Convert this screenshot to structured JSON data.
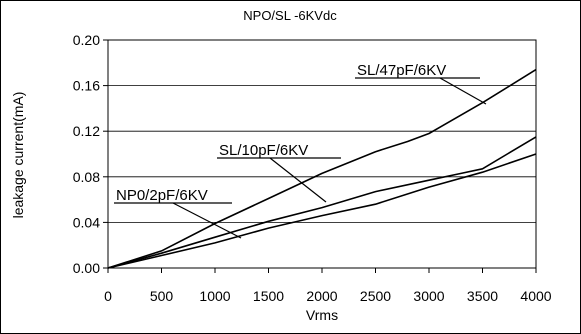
{
  "chart_data": {
    "type": "line",
    "title": "NPO/SL -6KVdc",
    "xlabel": "Vrms",
    "ylabel": "leakage current(mA)",
    "xlim": [
      0,
      4000
    ],
    "ylim": [
      0,
      0.2
    ],
    "xticks": [
      0,
      500,
      1000,
      1500,
      2000,
      2500,
      3000,
      3500,
      4000
    ],
    "yticks": [
      "0.00",
      "0.04",
      "0.08",
      "0.12",
      "0.16",
      "0.20"
    ],
    "grid": "horizontal",
    "legend": "none",
    "series": [
      {
        "name": "SL/47pF/6KV",
        "x": [
          0,
          500,
          1000,
          1500,
          2000,
          2500,
          2800,
          3000,
          3500,
          4000
        ],
        "y": [
          0,
          0.015,
          0.039,
          0.061,
          0.083,
          0.102,
          0.111,
          0.118,
          0.145,
          0.174
        ]
      },
      {
        "name": "SL/10pF/6KV",
        "x": [
          0,
          500,
          1000,
          1500,
          2000,
          2500,
          3000,
          3300,
          3500,
          4000
        ],
        "y": [
          0,
          0.013,
          0.027,
          0.041,
          0.053,
          0.067,
          0.077,
          0.083,
          0.087,
          0.115
        ]
      },
      {
        "name": "NP0/2pF/6KV",
        "x": [
          0,
          500,
          1000,
          1500,
          2000,
          2500,
          3000,
          3500,
          4000
        ],
        "y": [
          0,
          0.011,
          0.022,
          0.035,
          0.046,
          0.056,
          0.071,
          0.084,
          0.1
        ]
      }
    ]
  }
}
